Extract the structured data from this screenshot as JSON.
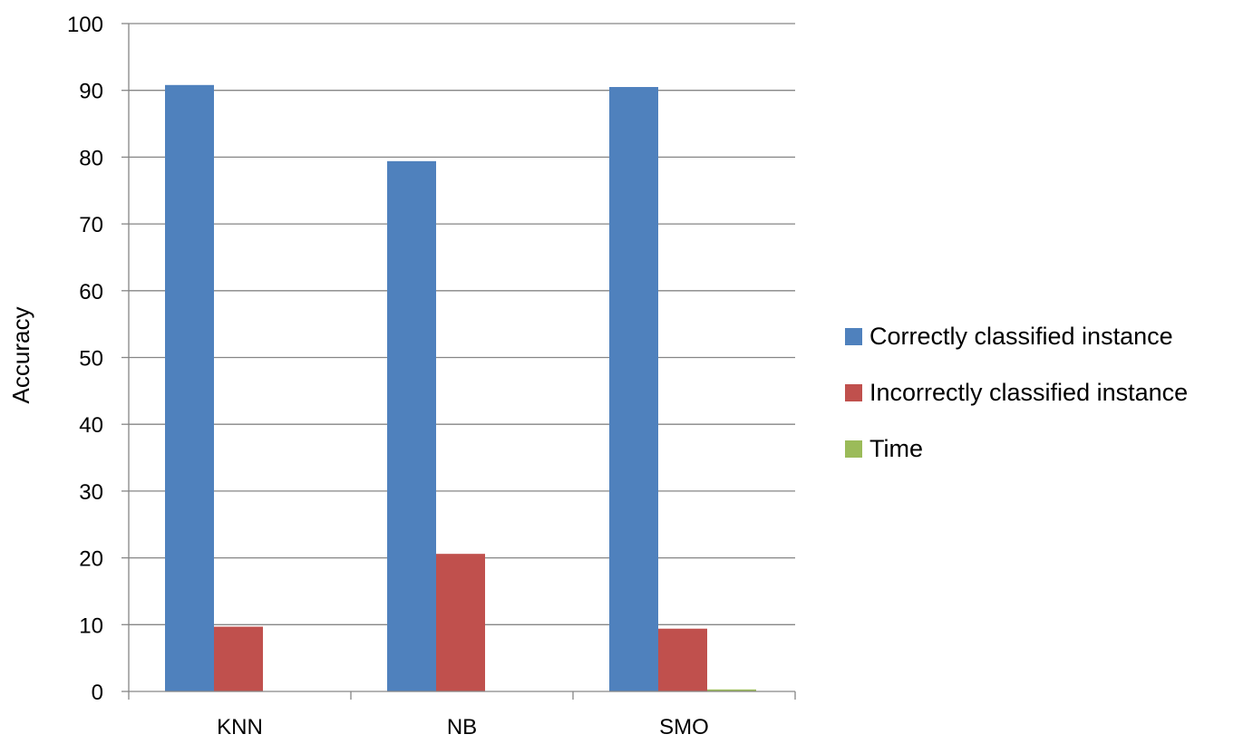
{
  "chart_data": {
    "type": "bar",
    "categories": [
      "KNN",
      "NB",
      "SMO"
    ],
    "series": [
      {
        "name": "Correctly classified instance",
        "color": "#4F81BD",
        "values": [
          90.8,
          79.4,
          90.5
        ]
      },
      {
        "name": "Incorrectly classified instance",
        "color": "#C0504D",
        "values": [
          9.7,
          20.6,
          9.4
        ]
      },
      {
        "name": "Time",
        "color": "#9BBB59",
        "values": [
          0,
          0,
          0.3
        ]
      }
    ],
    "ylabel": "Accuracy",
    "ylim": [
      0,
      100
    ],
    "yticks": [
      "0",
      "10",
      "20",
      "30",
      "40",
      "50",
      "60",
      "70",
      "80",
      "90",
      "100"
    ],
    "grid": true,
    "legend_position": "right"
  }
}
